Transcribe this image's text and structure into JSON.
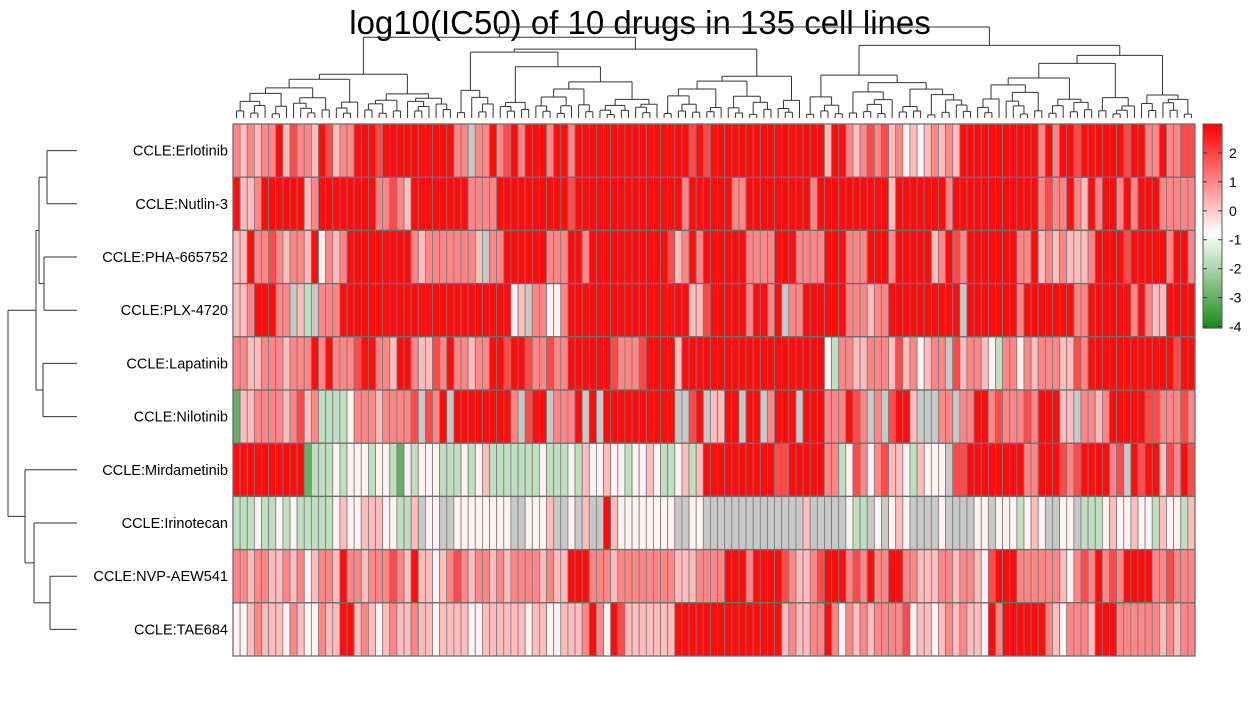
{
  "chart_data": {
    "type": "heatmap",
    "title": "log10(IC50) of 10 drugs in 135 cell lines",
    "n_columns": 135,
    "rows": [
      {
        "label": "CCLE:Erlotinib",
        "codes": [
          "plplppRlrpplRrlppRRRrRRRRRR",
          "RRRRppnppRprRpRRRpRRpRRRRRR",
          "RRRRRRRRRRrRrRRRRRRRRRRRRRR",
          "RRlRRplprprlpwlwlplplRRRRRR",
          "RRRRRpRpRRrRRRRRRrRRppRpprr"
        ]
      },
      {
        "label": "CCLE:Nutlin-3",
        "codes": [
          "RllpRRRRRRlpRRRRRRRRpprplRR",
          "RRRRRRppppRRRRRRRRRRrRRRRRR",
          "RRRRRRRRRpRRRRRRppRRRRRRRRR",
          "pRRRRRRRRRRlRRRRRRRpRRRRRRR",
          "RRRRRprppRplRpRRpRpRRRppppp"
        ]
      },
      {
        "label": "CCLE:PHA-665752",
        "codes": [
          "llRpprplpplRwplpRRRRRRRRRpl",
          "ppppppplnppRRRRRRpppRRpRRRR",
          "RRRRRRRrlpRpRRRRRRppppRRRpp",
          "ppRRRpppRRRpRRRRRlpRrpRRRRR",
          "RRppRlplplllpRRRRrRRRRRpRRp"
        ]
      },
      {
        "label": "CCLE:PLX-4720",
        "codes": [
          "llpRRRppnlgnpppRRRRRRRRRRRR",
          "RRRRRRRRRRRRwlnppwwpRRRRRRR",
          "RRRRRRRRRRllrRRRRRpRRpRnppR",
          "RRRRRppplppRRRRRRRRRRnRRRRR",
          "RRpRRRRRRRppRRRRRRpRpllRRRR"
        ]
      },
      {
        "label": "CCLE:Lapatinib",
        "codes": [
          "ppllppplpppRpRppprRRpplRRpl",
          "lrpRpplppRRrRRrpprppRRRRRRr",
          "ppprRRRRlRRRRRRRRRRRRRRRRRR",
          "RRwgppllppplrlpwlppnrlpplwg",
          "ppwplpppllrpRRRRRRRRRRRRrRR"
        ]
      },
      {
        "label": "CCLE:Nilotinib",
        "codes": [
          "Gllpppplprlpggggwppplpppprn",
          "rpRnRRRRRRRRpnrRRnpppRnRnRR",
          "RRRRRRRRnnrRnllRRnRRnpRRRnR",
          "RRpppRrpnpnrRRlnnnppnppRRpr",
          "ppprpRRRllnpplpRRRRRrrppprp"
        ]
      },
      {
        "label": "CCLE:Mirdametinib",
        "codes": [
          "RRRRRRRRRRGgggwgwwwgwwgGwgw",
          "wwgggwgwlgggggggwgggwglwwlw",
          "wgwwlwggwlglRRRRRRRRRRrrRRR",
          "RRppgwrpwprllwglwwwnrrRRRRR",
          "RRRppRRRrprRRRRprnRrRRlrpRr"
        ]
      },
      {
        "label": "CCLE:Irinotecan",
        "codes": [
          "gggwggwgwgggggwlwwlllwwggln",
          "wwnnwwwwwwwwnnwwwlnnwnlnnRl",
          "wwwwwwwwnnwwnnnnnnnnnnnnnnl",
          "nnnnnwggnwnwlwnnnnwnnnnwwnw",
          "wwgwlwnnwwngggwlwwlwwglwwgl"
        ]
      },
      {
        "label": "CCLE:NVP-AEW541",
        "codes": [
          "pplppllplpwlpplRpplppprplRl",
          "lwlprplpplplpppplpllRRRpppl",
          "pppppppplllppppRRRpRRRRrpll",
          "prRRRprpRppRRpplllpplpplwrR",
          "RRpppppplwprpRprpRRRRpprppp"
        ]
      },
      {
        "label": "CCLE:TAE684",
        "codes": [
          "wwlplllwplwwpllRRlplwlpllpl",
          "lwllllwwllllllwllwwlllpRpwR",
          "rlllllllRRRRRRRRRRRRRRRlpll",
          "ppRpwplplpppprwllwlplpllwRp",
          "RRRRRRplwppplRRRpppppplplpp"
        ]
      }
    ],
    "code_values": {
      "R": 2.8,
      "r": 1.9,
      "p": 1.0,
      "l": 0.2,
      "w": -0.6,
      "g": -1.7,
      "G": -3.0,
      "n": null
    },
    "na_color": "#c8c8c8",
    "row_tree": {
      "h": 69,
      "c": [
        {
          "h": 41,
          "c": [
            {
              "h": 38,
              "c": [
                {
                  "h": 30,
                  "c": [
                    0,
                    1
                  ]
                },
                {
                  "h": 33,
                  "c": [
                    2,
                    3
                  ]
                }
              ]
            },
            {
              "h": 34,
              "c": [
                4,
                5
              ]
            }
          ]
        },
        {
          "h": 52,
          "c": [
            6,
            {
              "h": 43,
              "c": [
                7,
                {
                  "h": 27,
                  "c": [
                    8,
                    9
                  ]
                }
              ]
            }
          ]
        }
      ]
    },
    "colorbar": {
      "min": -4.05,
      "max": 3.0,
      "mid": -0.8,
      "ticks": [
        "2",
        "1",
        "0",
        "-1",
        "-2",
        "-3",
        "-4"
      ],
      "tick_values": [
        2,
        1,
        0,
        -1,
        -2,
        -3,
        -4
      ],
      "colors": {
        "high": "#ff0000",
        "mid": "#ffffff",
        "low": "#1a8a1a"
      }
    }
  }
}
